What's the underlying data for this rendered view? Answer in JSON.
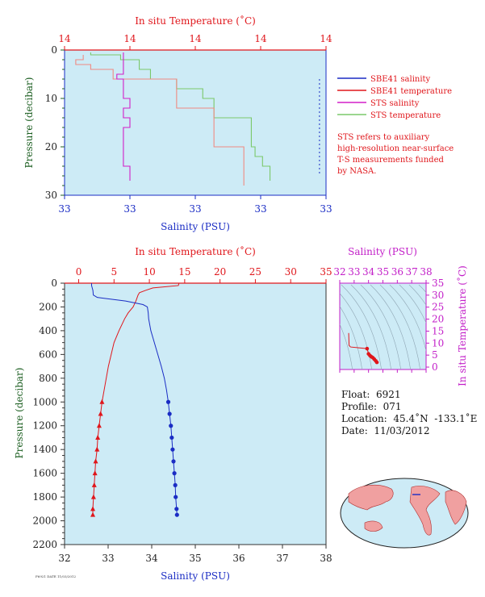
{
  "colors": {
    "plot_bg": "#cdebf6",
    "temperature": "#e0161b",
    "temperature_light": "#f08a82",
    "salinity": "#1a2cc4",
    "sts_salinity": "#d21ec8",
    "sts_temperature": "#7ac86a",
    "pressure_axis": "#1b5e20",
    "tsinset": "#c21ec8"
  },
  "top_panel": {
    "title": "In situ Temperature (˚C)",
    "temp_ticks": [
      "14",
      "14",
      "14",
      "14",
      "14"
    ],
    "sal_ticks": [
      "33",
      "33",
      "33",
      "33",
      "33"
    ],
    "pressure_ticks": [
      "0",
      "10",
      "20",
      "30"
    ],
    "xlabel": "Salinity (PSU)",
    "ylabel": "Pressure (decibar)"
  },
  "legend": [
    {
      "label": "SBE41 salinity",
      "color_key": "salinity"
    },
    {
      "label": "SBE41 temperature",
      "color_key": "temperature"
    },
    {
      "label": "STS salinity",
      "color_key": "sts_salinity"
    },
    {
      "label": "STS temperature",
      "color_key": "sts_temperature"
    }
  ],
  "note": [
    "STS refers to auxiliary",
    "high-resolution near-surface",
    "T-S measurements funded",
    "by NASA."
  ],
  "bottom_panel": {
    "title": "In situ Temperature (˚C)",
    "temp_ticks": [
      "0",
      "5",
      "10",
      "15",
      "20",
      "25",
      "30",
      "35"
    ],
    "sal_ticks": [
      "32",
      "33",
      "34",
      "35",
      "36",
      "37",
      "38"
    ],
    "pressure_ticks": [
      "0",
      "200",
      "400",
      "600",
      "800",
      "1000",
      "1200",
      "1400",
      "1600",
      "1800",
      "2000",
      "2200"
    ],
    "xlabel": "Salinity (PSU)",
    "ylabel": "Pressure (decibar)"
  },
  "ts_inset": {
    "title": "Salinity (PSU)",
    "sal_ticks": [
      "32",
      "33",
      "34",
      "35",
      "36",
      "37",
      "38"
    ],
    "temp_ticks": [
      "0",
      "5",
      "10",
      "15",
      "20",
      "25",
      "30",
      "35"
    ],
    "ylabel": "In situ Temperature (˚C)"
  },
  "float_info": {
    "float": "Float:  6921",
    "profile": "Profile:  071",
    "location": "Location:  45.4˚N  -133.1˚E",
    "date": "Date:  11/03/2012"
  },
  "footer_code": "F6921 DATE 11/03/2012",
  "chart_data": [
    {
      "type": "line",
      "panel": "near-surface profiles",
      "x_axis_temperature_c": [
        13.55,
        14.25
      ],
      "x_axis_salinity_psu": [
        32.9,
        33.3
      ],
      "ylim_pressure_dbar": [
        30,
        0
      ],
      "series": [
        {
          "name": "SBE41 salinity",
          "pressure": [
            6,
            8,
            10,
            12,
            14,
            16,
            18,
            20,
            22,
            24,
            26
          ],
          "salinity": [
            33.29,
            33.29,
            33.29,
            33.29,
            33.29,
            33.29,
            33.29,
            33.29,
            33.29,
            33.29,
            33.29
          ]
        },
        {
          "name": "SBE41 temperature",
          "pressure": [
            1,
            2,
            3,
            4,
            6,
            8,
            10,
            12,
            14,
            16,
            18,
            20,
            22,
            24,
            26,
            28
          ],
          "temperature": [
            13.6,
            13.58,
            13.62,
            13.68,
            13.85,
            13.85,
            13.85,
            13.95,
            13.95,
            13.95,
            13.95,
            14.03,
            14.03,
            14.03,
            14.03,
            14.03
          ]
        },
        {
          "name": "STS salinity",
          "pressure": [
            0.5,
            1,
            2,
            3,
            4,
            5,
            6,
            8,
            10,
            12,
            14,
            16,
            18,
            20,
            22,
            24,
            26,
            27
          ],
          "salinity": [
            32.99,
            32.99,
            32.99,
            32.99,
            32.99,
            32.98,
            32.99,
            32.99,
            33.0,
            32.99,
            33.0,
            32.99,
            32.99,
            32.99,
            32.99,
            33.0,
            33.0,
            33.0
          ]
        },
        {
          "name": "STS temperature",
          "pressure": [
            0.5,
            1,
            2,
            3,
            4,
            6,
            8,
            10,
            12,
            14,
            16,
            18,
            20,
            22,
            24,
            26,
            27
          ],
          "temperature": [
            13.62,
            13.7,
            13.75,
            13.75,
            13.78,
            13.85,
            13.92,
            13.95,
            13.95,
            14.05,
            14.05,
            14.05,
            14.06,
            14.08,
            14.1,
            14.1,
            14.1
          ]
        }
      ]
    },
    {
      "type": "line",
      "panel": "full profile",
      "x_axis_temperature_c": [
        -2,
        35
      ],
      "x_axis_salinity_psu": [
        32,
        38
      ],
      "ylim_pressure_dbar": [
        2200,
        0
      ],
      "series": [
        {
          "name": "Temperature",
          "pressure": [
            0,
            20,
            40,
            60,
            80,
            100,
            150,
            200,
            250,
            300,
            400,
            500,
            600,
            700,
            800,
            900,
            1000,
            1100,
            1200,
            1300,
            1400,
            1500,
            1600,
            1700,
            1800,
            1900,
            1950
          ],
          "temperature": [
            14.2,
            14.1,
            10.5,
            9.5,
            8.6,
            8.4,
            8.1,
            7.7,
            7.0,
            6.5,
            5.7,
            5.0,
            4.6,
            4.2,
            3.9,
            3.6,
            3.3,
            3.1,
            2.9,
            2.7,
            2.6,
            2.4,
            2.3,
            2.2,
            2.1,
            2.0,
            2.0
          ]
        },
        {
          "name": "Salinity",
          "pressure": [
            0,
            20,
            60,
            100,
            120,
            150,
            180,
            200,
            250,
            300,
            400,
            500,
            600,
            700,
            800,
            900,
            1000,
            1100,
            1200,
            1300,
            1400,
            1500,
            1600,
            1700,
            1800,
            1900,
            1950
          ],
          "salinity": [
            32.62,
            32.62,
            32.65,
            32.66,
            32.75,
            33.4,
            33.8,
            33.9,
            33.92,
            33.93,
            33.98,
            34.06,
            34.14,
            34.22,
            34.29,
            34.34,
            34.38,
            34.41,
            34.44,
            34.46,
            34.48,
            34.5,
            34.52,
            34.54,
            34.55,
            34.57,
            34.58
          ]
        }
      ]
    },
    {
      "type": "scatter",
      "panel": "T-S diagram",
      "xlim_salinity": [
        32,
        38
      ],
      "ylim_temperature": [
        -1,
        35
      ],
      "series": [
        {
          "name": "T-S",
          "salinity": [
            32.62,
            32.65,
            32.75,
            33.4,
            33.9,
            34.0,
            34.1,
            34.2,
            34.3,
            34.4,
            34.5,
            34.58
          ],
          "temperature": [
            14.2,
            9.0,
            8.4,
            8.0,
            7.7,
            5.5,
            4.8,
            4.3,
            3.9,
            3.3,
            2.6,
            2.0
          ]
        }
      ]
    }
  ]
}
